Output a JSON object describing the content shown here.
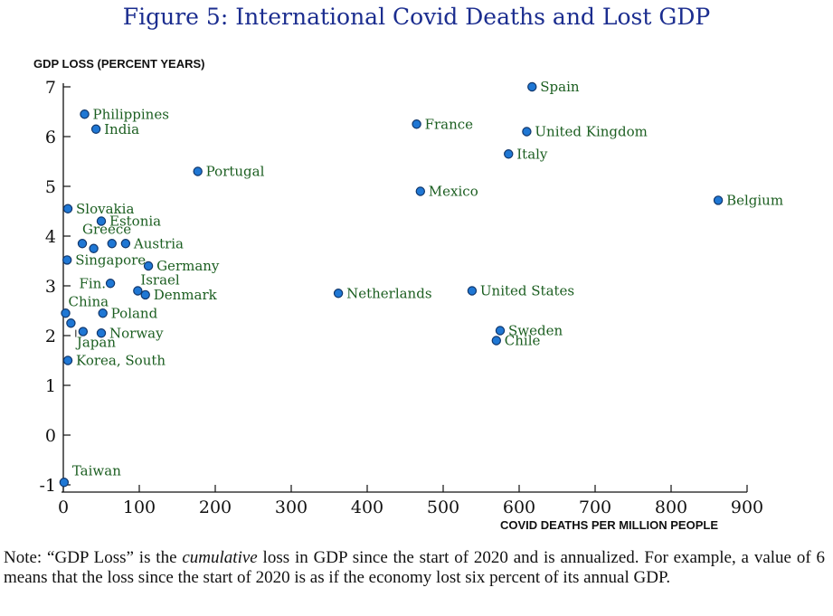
{
  "title": "Figure 5: International Covid Deaths and Lost GDP",
  "note": {
    "prefix": "Note: “GDP Loss” is the ",
    "emph": "cumulative",
    "rest": " loss in GDP since the start of 2020 and is annualized.  For example, a value of 6 means that the loss since the start of 2020 is as if the economy lost six percent of its annual GDP."
  },
  "colors": {
    "marker": "#1f77d4",
    "marker_edge": "#10366b",
    "label": "#1b5e20",
    "title": "#1b2d8f"
  },
  "chart_data": {
    "type": "scatter",
    "title": "Figure 5: International Covid Deaths and Lost GDP",
    "xlabel": "COVID DEATHS PER MILLION PEOPLE",
    "ylabel": "GDP LOSS (PERCENT YEARS)",
    "xlim": [
      0,
      900
    ],
    "ylim": [
      -1,
      7
    ],
    "x_ticks": [
      0,
      100,
      200,
      300,
      400,
      500,
      600,
      700,
      800,
      900
    ],
    "y_ticks": [
      -1,
      0,
      1,
      2,
      3,
      4,
      5,
      6,
      7
    ],
    "grid": false,
    "points": [
      {
        "label": "Spain",
        "x": 617,
        "y": 7.0
      },
      {
        "label": "Philippines",
        "x": 28,
        "y": 6.45
      },
      {
        "label": "India",
        "x": 43,
        "y": 6.15
      },
      {
        "label": "France",
        "x": 465,
        "y": 6.25
      },
      {
        "label": "United Kingdom",
        "x": 610,
        "y": 6.1
      },
      {
        "label": "Italy",
        "x": 586,
        "y": 5.65
      },
      {
        "label": "Portugal",
        "x": 177,
        "y": 5.3
      },
      {
        "label": "Mexico",
        "x": 470,
        "y": 4.9
      },
      {
        "label": "Belgium",
        "x": 862,
        "y": 4.72
      },
      {
        "label": "Slovakia",
        "x": 6,
        "y": 4.55
      },
      {
        "label": "Estonia",
        "x": 50,
        "y": 4.3
      },
      {
        "label": "Greece",
        "x": 25,
        "y": 3.85
      },
      {
        "label": "",
        "x": 40,
        "y": 3.75
      },
      {
        "label": "",
        "x": 64,
        "y": 3.85
      },
      {
        "label": "Austria",
        "x": 82,
        "y": 3.85
      },
      {
        "label": "Singapore",
        "x": 5,
        "y": 3.52
      },
      {
        "label": "Germany",
        "x": 112,
        "y": 3.4
      },
      {
        "label": "Fin.",
        "x": 62,
        "y": 3.05
      },
      {
        "label": "Israel",
        "x": 98,
        "y": 2.9
      },
      {
        "label": "Denmark",
        "x": 108,
        "y": 2.82
      },
      {
        "label": "Netherlands",
        "x": 362,
        "y": 2.85
      },
      {
        "label": "United States",
        "x": 538,
        "y": 2.9
      },
      {
        "label": "China",
        "x": 3,
        "y": 2.45
      },
      {
        "label": "Poland",
        "x": 52,
        "y": 2.45
      },
      {
        "label": "",
        "x": 10,
        "y": 2.25
      },
      {
        "label": "Japan",
        "x": 26,
        "y": 2.08
      },
      {
        "label": "Norway",
        "x": 50,
        "y": 2.05
      },
      {
        "label": "Sweden",
        "x": 575,
        "y": 2.1
      },
      {
        "label": "Chile",
        "x": 570,
        "y": 1.9
      },
      {
        "label": "Korea, South",
        "x": 6,
        "y": 1.5
      },
      {
        "label": "Taiwan",
        "x": 1,
        "y": -0.95
      }
    ]
  }
}
